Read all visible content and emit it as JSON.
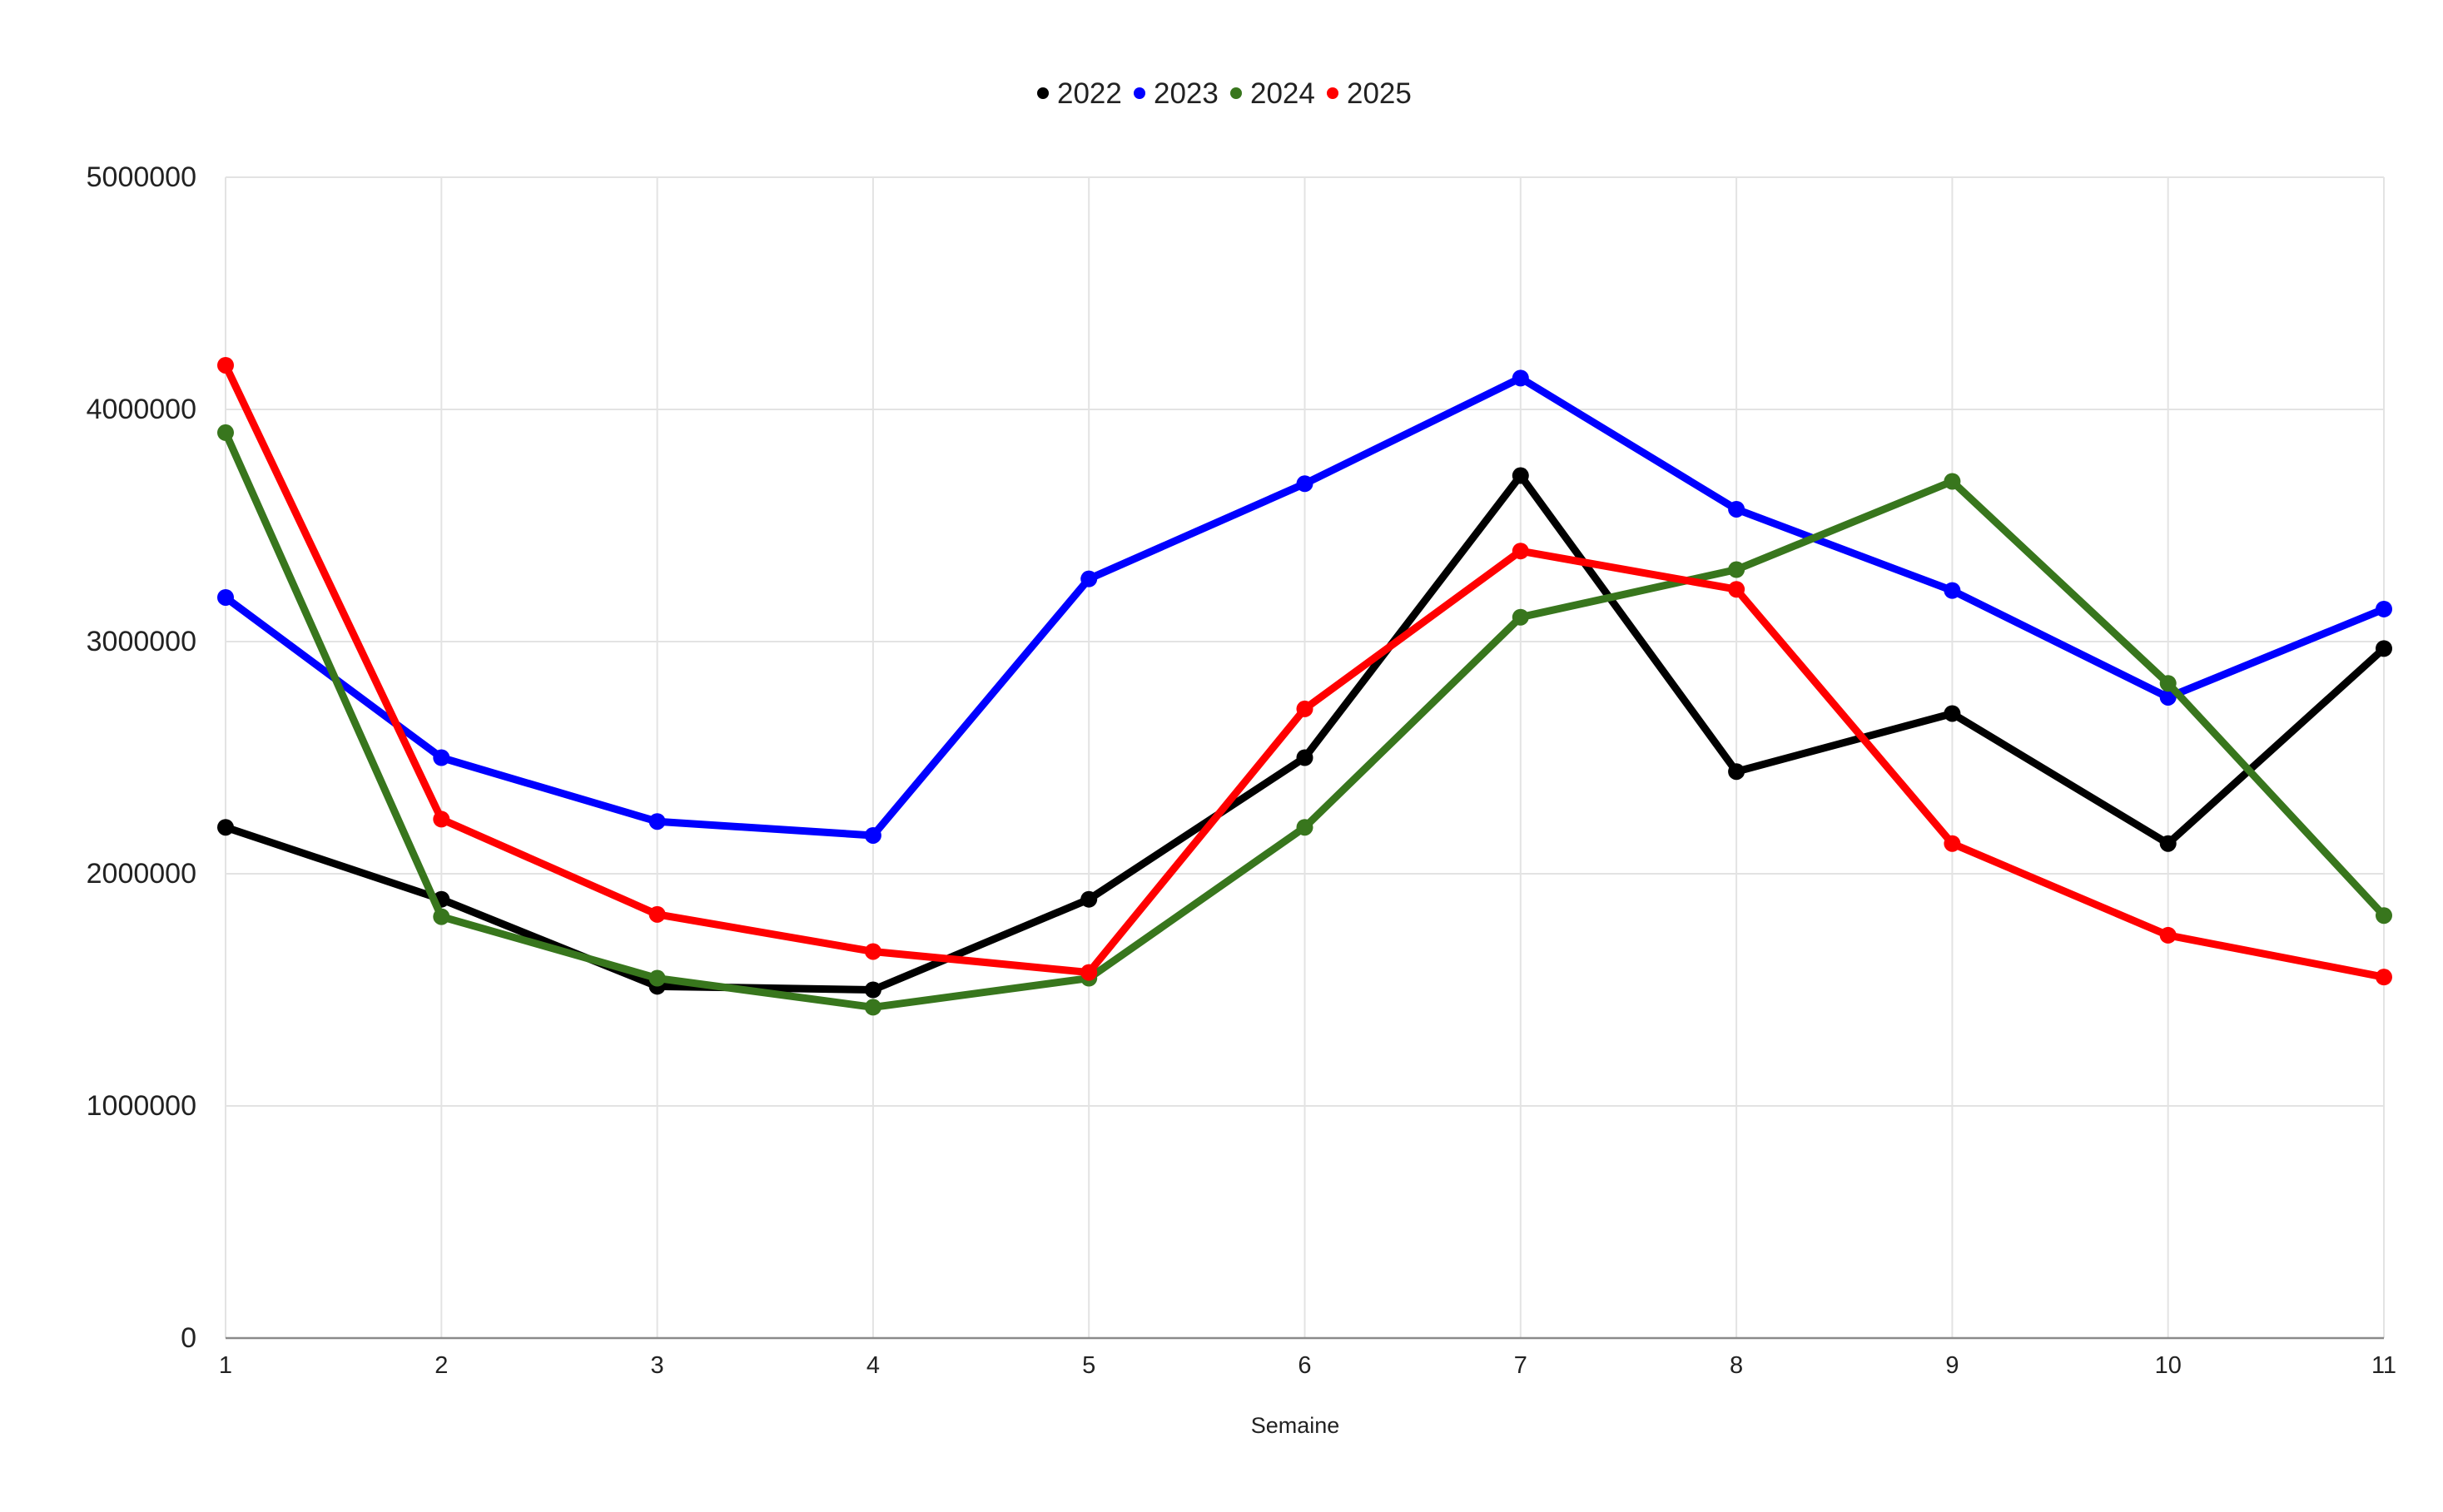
{
  "chart_data": {
    "type": "line",
    "title": "",
    "xlabel": "Semaine",
    "ylabel": "",
    "x": [
      1,
      2,
      3,
      4,
      5,
      6,
      7,
      8,
      9,
      10,
      11
    ],
    "ylim": [
      0,
      5000000
    ],
    "yticks": [
      0,
      1000000,
      2000000,
      3000000,
      4000000,
      5000000
    ],
    "ytick_labels": [
      "0",
      "1000000",
      "2000000",
      "3000000",
      "4000000",
      "5000000"
    ],
    "grid": true,
    "legend_position": "top",
    "series": [
      {
        "name": "2022",
        "color": "#000000",
        "values": [
          2200000,
          1890000,
          1515000,
          1500000,
          1890000,
          2500000,
          3715000,
          2440000,
          2690000,
          2130000,
          2970000
        ]
      },
      {
        "name": "2023",
        "color": "#0000ff",
        "values": [
          3190000,
          2500000,
          2225000,
          2165000,
          3270000,
          3680000,
          4135000,
          3570000,
          3220000,
          2760000,
          3140000
        ]
      },
      {
        "name": "2024",
        "color": "#38761d",
        "values": [
          3900000,
          1815000,
          1550000,
          1425000,
          1550000,
          2200000,
          3105000,
          3310000,
          3690000,
          2820000,
          1820000
        ]
      },
      {
        "name": "2025",
        "color": "#ff0000",
        "values": [
          4190000,
          2235000,
          1825000,
          1665000,
          1575000,
          2710000,
          3390000,
          3225000,
          2130000,
          1735000,
          1555000
        ]
      }
    ]
  }
}
